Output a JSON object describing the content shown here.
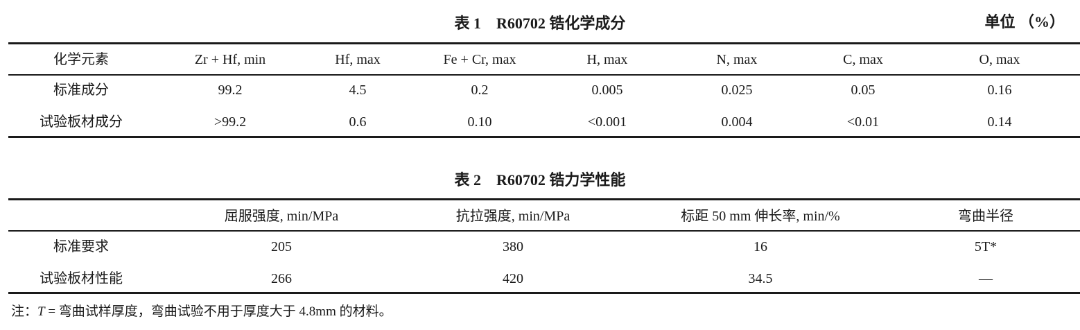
{
  "table1": {
    "title": "表 1　R60702 锆化学成分",
    "unit": "单位 （%）",
    "headers": [
      "化学元素",
      "Zr + Hf, min",
      "Hf, max",
      "Fe + Cr, max",
      "H, max",
      "N, max",
      "C, max",
      "O, max"
    ],
    "rows": [
      [
        "标准成分",
        "99.2",
        "4.5",
        "0.2",
        "0.005",
        "0.025",
        "0.05",
        "0.16"
      ],
      [
        "试验板材成分",
        ">99.2",
        "0.6",
        "0.10",
        "<0.001",
        "0.004",
        "<0.01",
        "0.14"
      ]
    ]
  },
  "table2": {
    "title": "表 2　R60702 锆力学性能",
    "headers": [
      "",
      "屈服强度, min/MPa",
      "抗拉强度, min/MPa",
      "标距 50 mm 伸长率, min/%",
      "弯曲半径"
    ],
    "rows": [
      [
        "标准要求",
        "205",
        "380",
        "16",
        "5T*"
      ],
      [
        "试验板材性能",
        "266",
        "420",
        "34.5",
        "—"
      ]
    ]
  },
  "note": {
    "prefix": "注：",
    "symbol": "T",
    "text": " = 弯曲试样厚度，弯曲试验不用于厚度大于 4.8mm 的材料。"
  }
}
